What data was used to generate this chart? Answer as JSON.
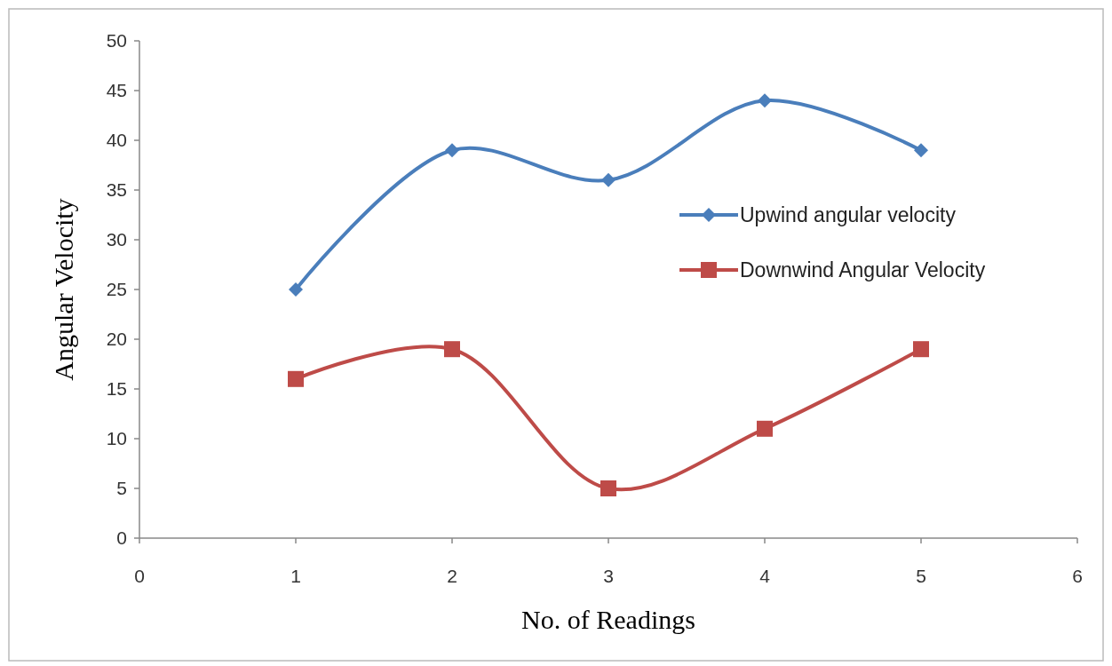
{
  "chart_data": {
    "type": "line",
    "xlabel": "No. of Readings",
    "ylabel": "Angular Velocity",
    "x": [
      1,
      2,
      3,
      4,
      5
    ],
    "series": [
      {
        "name": "Upwind angular velocity",
        "color": "#4a7ebb",
        "values": [
          25,
          39,
          36,
          44,
          39
        ],
        "marker": "diamond"
      },
      {
        "name": "Downwind Angular Velocity",
        "color": "#be4b48",
        "values": [
          16,
          19,
          5,
          11,
          19
        ],
        "marker": "square"
      }
    ],
    "xlim": [
      0,
      6
    ],
    "xticks": [
      0,
      1,
      2,
      3,
      4,
      5,
      6
    ],
    "ylim": [
      0,
      50
    ],
    "yticks": [
      0,
      5,
      10,
      15,
      20,
      25,
      30,
      35,
      40,
      45,
      50
    ],
    "grid": false,
    "legend": "right",
    "line_style": "solid"
  }
}
